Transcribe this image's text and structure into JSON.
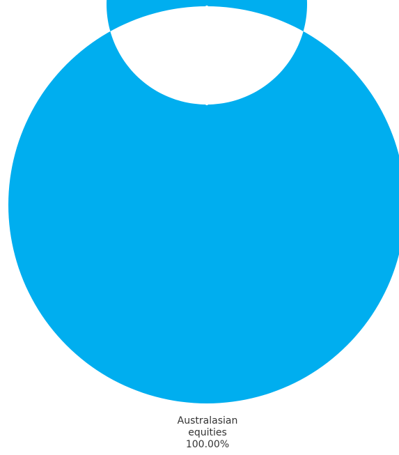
{
  "chart_data": {
    "type": "pie",
    "variant": "donut",
    "title": "",
    "legend": "none",
    "slices": [
      {
        "label_line1": "Australasian",
        "label_line2": "equities",
        "value": 100.0,
        "value_label": "100.00%",
        "color": "#00AEEF"
      }
    ]
  }
}
